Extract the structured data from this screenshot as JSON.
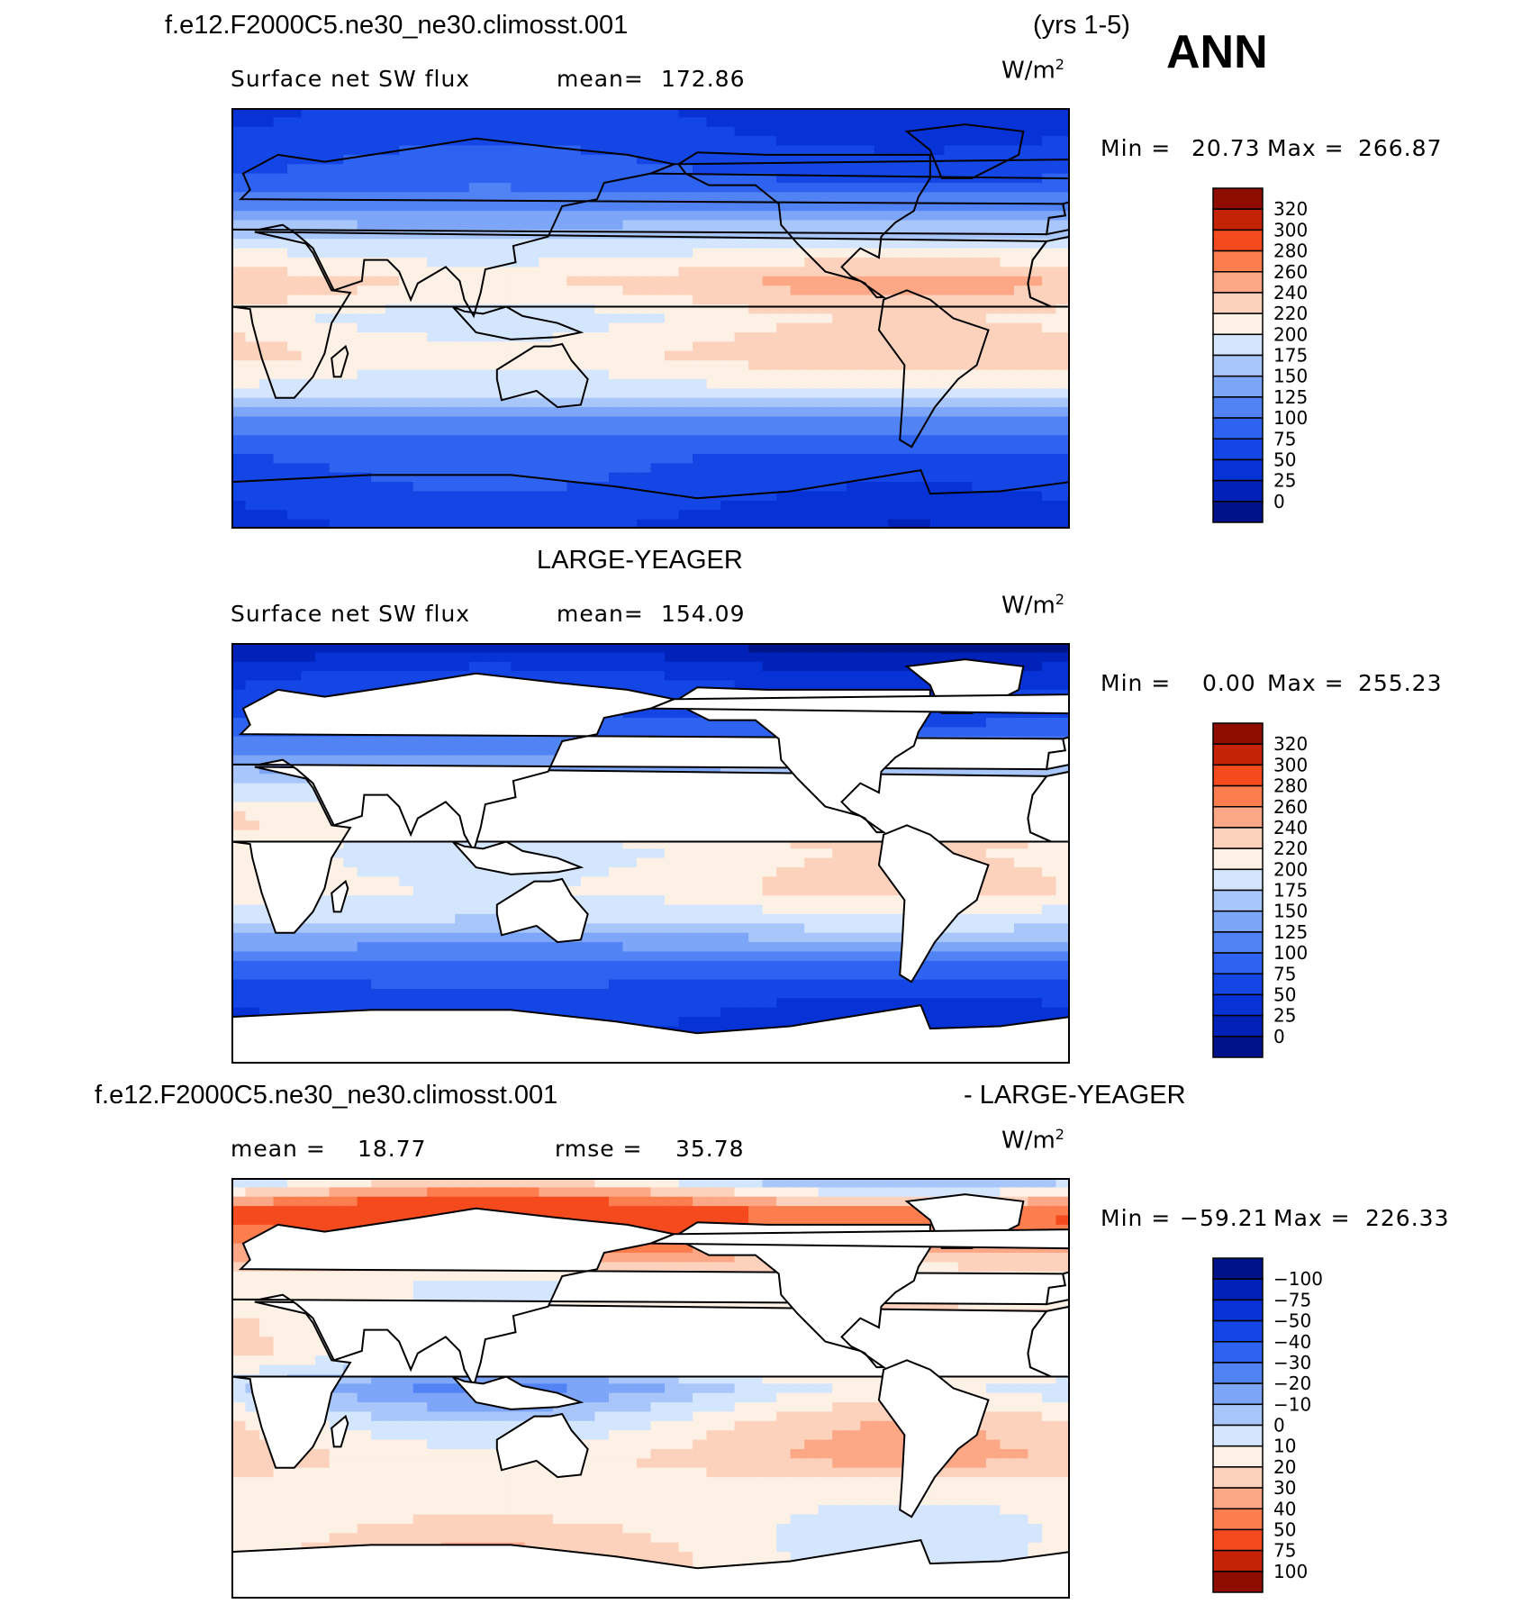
{
  "header": {
    "case_name": "f.e12.F2000C5.ne30_ne30.climosst.001",
    "years": "(yrs 1-5)",
    "season": "ANN"
  },
  "panels": [
    {
      "id": "model",
      "variable": "Surface net SW flux",
      "stat1_label": "mean=",
      "stat1_value": "172.86",
      "units": "W/m",
      "units_sup": "2",
      "min_label": "Min =",
      "min_value": "20.73",
      "max_label": "Max =",
      "max_value": "266.87"
    },
    {
      "id": "obs",
      "title": "LARGE-YEAGER",
      "variable": "Surface net SW flux",
      "stat1_label": "mean=",
      "stat1_value": "154.09",
      "units": "W/m",
      "units_sup": "2",
      "min_label": "Min =",
      "min_value": "0.00",
      "max_label": "Max =",
      "max_value": "255.23"
    },
    {
      "id": "diff",
      "title_left": "f.e12.F2000C5.ne30_ne30.climosst.001",
      "title_right": "- LARGE-YEAGER",
      "stat1_label": "mean =",
      "stat1_value": "18.77",
      "stat2_label": "rmse =",
      "stat2_value": "35.78",
      "units": "W/m",
      "units_sup": "2",
      "min_label": "Min =",
      "min_value": "−59.21",
      "max_label": "Max =",
      "max_value": "226.33"
    }
  ],
  "chart_data": [
    {
      "type": "heatmap",
      "title": "Surface net SW flux (f.e12.F2000C5.ne30_ne30.climosst.001)",
      "units": "W/m2",
      "mean": 172.86,
      "min": 20.73,
      "max": 266.87,
      "x_range_deg_lon": [
        0,
        360
      ],
      "y_range_deg_lat": [
        -90,
        90
      ],
      "colorbar_levels": [
        "0",
        "25",
        "50",
        "75",
        "100",
        "125",
        "150",
        "175",
        "200",
        "220",
        "240",
        "260",
        "280",
        "300",
        "320"
      ],
      "colorbar_colors": [
        "#00128a",
        "#0022b8",
        "#0632d6",
        "#1446e6",
        "#2e62f0",
        "#5283f5",
        "#7ea6f8",
        "#a9c6fb",
        "#d4e6fd",
        "#fdf0e4",
        "#fdd2bc",
        "#fca785",
        "#fc7d4e",
        "#f44a1d",
        "#c42305",
        "#8f0d00"
      ],
      "latitude_profile_deg": [
        -90,
        -75,
        -60,
        -45,
        -30,
        -15,
        0,
        15,
        30,
        45,
        60,
        75,
        90
      ],
      "latitude_profile_values": [
        40,
        60,
        75,
        110,
        195,
        225,
        205,
        235,
        195,
        130,
        80,
        60,
        45
      ]
    },
    {
      "type": "heatmap",
      "title": "Surface net SW flux (LARGE-YEAGER)",
      "units": "W/m2",
      "mean": 154.09,
      "min": 0.0,
      "max": 255.23,
      "x_range_deg_lon": [
        0,
        360
      ],
      "y_range_deg_lat": [
        -90,
        90
      ],
      "colorbar_levels": [
        "0",
        "25",
        "50",
        "75",
        "100",
        "125",
        "150",
        "175",
        "200",
        "220",
        "240",
        "260",
        "280",
        "300",
        "320"
      ],
      "colorbar_colors": [
        "#00128a",
        "#0022b8",
        "#0632d6",
        "#1446e6",
        "#2e62f0",
        "#5283f5",
        "#7ea6f8",
        "#a9c6fb",
        "#d4e6fd",
        "#fdf0e4",
        "#fdd2bc",
        "#fca785",
        "#fc7d4e",
        "#f44a1d",
        "#c42305",
        "#8f0d00"
      ],
      "latitude_profile_deg": [
        -90,
        -75,
        -60,
        -45,
        -30,
        -15,
        0,
        15,
        30,
        45,
        60,
        75,
        90
      ],
      "latitude_profile_values": [
        0,
        45,
        60,
        100,
        180,
        215,
        205,
        220,
        175,
        110,
        70,
        50,
        0
      ]
    },
    {
      "type": "heatmap",
      "title": "f.e12.F2000C5.ne30_ne30.climosst.001 - LARGE-YEAGER",
      "units": "W/m2",
      "mean": 18.77,
      "rmse": 35.78,
      "min": -59.21,
      "max": 226.33,
      "x_range_deg_lon": [
        0,
        360
      ],
      "y_range_deg_lat": [
        -90,
        90
      ],
      "colorbar_levels": [
        "100",
        "75",
        "50",
        "40",
        "30",
        "20",
        "10",
        "0",
        "−10",
        "−20",
        "−30",
        "−40",
        "−50",
        "−75",
        "−100"
      ],
      "colorbar_colors": [
        "#8f0d00",
        "#c42305",
        "#f44a1d",
        "#fc7d4e",
        "#fca785",
        "#fdd2bc",
        "#fdf0e4",
        "#d4e6fd",
        "#a9c6fb",
        "#7ea6f8",
        "#5283f5",
        "#2e62f0",
        "#1446e6",
        "#0632d6",
        "#0022b8",
        "#00128a"
      ],
      "latitude_profile_deg": [
        -90,
        -75,
        -60,
        -45,
        -30,
        -15,
        0,
        15,
        30,
        45,
        60,
        75,
        90
      ],
      "latitude_profile_values": [
        0,
        20,
        15,
        12,
        25,
        15,
        -5,
        20,
        18,
        10,
        40,
        60,
        0
      ]
    }
  ]
}
